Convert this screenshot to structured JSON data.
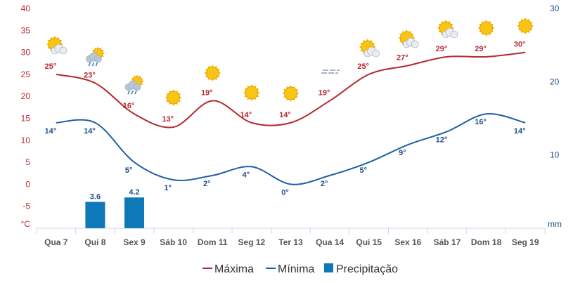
{
  "chart_data": {
    "type": "line",
    "categories": [
      "Qua 7",
      "Qui 8",
      "Sex 9",
      "Sáb 10",
      "Dom 11",
      "Seg 12",
      "Ter 13",
      "Qua 14",
      "Qui 15",
      "Sex 16",
      "Sáb 17",
      "Dom 18",
      "Seg 19"
    ],
    "series": [
      {
        "name": "Máxima",
        "color": "#b5292e",
        "values": [
          25,
          23,
          16,
          13,
          19,
          14,
          14,
          19,
          25,
          27,
          29,
          29,
          30
        ],
        "labels": [
          "25°",
          "23°",
          "16°",
          "13°",
          "19°",
          "14°",
          "14°",
          "19°",
          "25°",
          "27°",
          "29°",
          "29°",
          "30°"
        ]
      },
      {
        "name": "Mínima",
        "color": "#1f5fa6",
        "values": [
          14,
          14,
          5,
          1,
          2,
          4,
          0,
          2,
          5,
          9,
          12,
          16,
          14
        ],
        "labels": [
          "14°",
          "14°",
          "5°",
          "1°",
          "2°",
          "4°",
          "0°",
          "2°",
          "5°",
          "9°",
          "12°",
          "16°",
          "14°"
        ]
      },
      {
        "name": "Precipitação",
        "color": "#0e78b8",
        "type": "bar",
        "values": [
          0,
          3.6,
          4.2,
          0,
          0,
          0,
          0,
          0,
          0,
          0,
          0,
          0,
          0
        ],
        "labels": [
          "",
          "3.6",
          "4.2",
          "",
          "",
          "",
          "",
          "",
          "",
          "",
          "",
          "",
          ""
        ]
      }
    ],
    "y_left": {
      "unit": "°C",
      "ticks": [
        "40",
        "35",
        "30",
        "25",
        "20",
        "15",
        "10",
        "5",
        "0",
        "-5"
      ],
      "range": [
        -10,
        40
      ]
    },
    "y_right": {
      "unit": "mm",
      "ticks": [
        "30",
        "20",
        "10"
      ],
      "range": [
        0,
        30
      ]
    },
    "weather_icons": [
      "sun-cloud",
      "rain-cloud",
      "rain-cloud",
      "sun",
      "sun",
      "sun",
      "sun",
      "fog",
      "sun-cloud",
      "sun-cloud",
      "sun-cloud",
      "sun",
      "sun"
    ],
    "legend": {
      "position": "bottom",
      "items": [
        "Máxima",
        "Mínima",
        "Precipitação"
      ]
    }
  }
}
